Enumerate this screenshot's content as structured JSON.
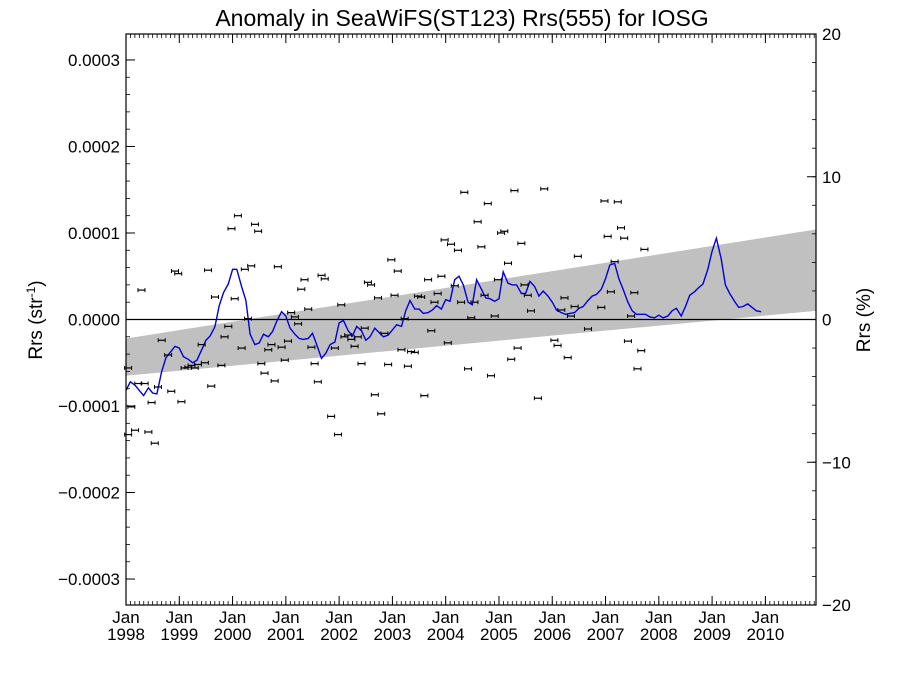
{
  "chart_data": {
    "type": "scatter",
    "title": "Anomaly in SeaWiFS(ST123) Rrs(555) for IOSG",
    "ylabel_left": {
      "text": "Rrs (str",
      "sup": "-1",
      "tail": ")"
    },
    "ylabel_right": "Rrs (%)",
    "xlim": [
      1998.0,
      2010.95
    ],
    "ylim": [
      -0.00033,
      0.00033
    ],
    "ylim_right": [
      -20,
      20
    ],
    "grid": false,
    "x_ticks": [
      {
        "x": 1998,
        "line1": "Jan",
        "line2": "1998"
      },
      {
        "x": 1999,
        "line1": "Jan",
        "line2": "1999"
      },
      {
        "x": 2000,
        "line1": "Jan",
        "line2": "2000"
      },
      {
        "x": 2001,
        "line1": "Jan",
        "line2": "2001"
      },
      {
        "x": 2002,
        "line1": "Jan",
        "line2": "2002"
      },
      {
        "x": 2003,
        "line1": "Jan",
        "line2": "2003"
      },
      {
        "x": 2004,
        "line1": "Jan",
        "line2": "2004"
      },
      {
        "x": 2005,
        "line1": "Jan",
        "line2": "2005"
      },
      {
        "x": 2006,
        "line1": "Jan",
        "line2": "2006"
      },
      {
        "x": 2007,
        "line1": "Jan",
        "line2": "2007"
      },
      {
        "x": 2008,
        "line1": "Jan",
        "line2": "2008"
      },
      {
        "x": 2009,
        "line1": "Jan",
        "line2": "2009"
      },
      {
        "x": 2010,
        "line1": "Jan",
        "line2": "2010"
      }
    ],
    "y_ticks_left": [
      {
        "value": 0.0003,
        "label": "0.0003"
      },
      {
        "value": 0.0002,
        "label": "0.0002"
      },
      {
        "value": 0.0001,
        "label": "0.0001"
      },
      {
        "value": 0.0,
        "label": "0.0000"
      },
      {
        "value": -0.0001,
        "label": "−0.0001"
      },
      {
        "value": -0.0002,
        "label": "−0.0002"
      },
      {
        "value": -0.0003,
        "label": "−0.0003"
      }
    ],
    "y_ticks_right": [
      {
        "value": 20,
        "label": "20"
      },
      {
        "value": 10,
        "label": "10"
      },
      {
        "value": 0,
        "label": "0"
      },
      {
        "value": -10,
        "label": "−10"
      },
      {
        "value": -20,
        "label": "−20"
      }
    ],
    "colors": {
      "smoothed_line": "#0000dd",
      "trend_band": "#c0c0c0",
      "points": "#000000",
      "zero_line": "#000000"
    },
    "trend_band": {
      "x": [
        1998.0,
        2010.95
      ],
      "upper": [
        -2.2e-05,
        0.000104
      ],
      "lower": [
        -6.5e-05,
        1e-05
      ]
    },
    "zero_line": 0.0,
    "points": [
      [
        1998.04,
        -5.6e-05
      ],
      [
        1998.04,
        -0.000133
      ],
      [
        1998.1,
        -0.000101
      ],
      [
        1998.17,
        -0.000128
      ],
      [
        1998.23,
        -7.4e-05
      ],
      [
        1998.29,
        3.4e-05
      ],
      [
        1998.35,
        -7.4e-05
      ],
      [
        1998.42,
        -0.00013
      ],
      [
        1998.48,
        -9.6e-05
      ],
      [
        1998.54,
        -0.000143
      ],
      [
        1998.6,
        -7.8e-05
      ],
      [
        1998.67,
        -2.4e-05
      ],
      [
        1998.79,
        -4.1e-05
      ],
      [
        1998.85,
        -8.3e-05
      ],
      [
        1998.92,
        5.6e-05
      ],
      [
        1998.98,
        5.3e-05
      ],
      [
        1999.04,
        -9.5e-05
      ],
      [
        1999.1,
        -5.6e-05
      ],
      [
        1999.17,
        -5.5e-05
      ],
      [
        1999.23,
        -5.3e-05
      ],
      [
        1999.29,
        -5.6e-05
      ],
      [
        1999.35,
        -5.2e-05
      ],
      [
        1999.42,
        -2.9e-05
      ],
      [
        1999.48,
        -5e-05
      ],
      [
        1999.54,
        5.7e-05
      ],
      [
        1999.6,
        -7.7e-05
      ],
      [
        1999.67,
        2.6e-05
      ],
      [
        1999.79,
        -5.3e-05
      ],
      [
        1999.85,
        -2e-05
      ],
      [
        1999.92,
        -8e-06
      ],
      [
        1999.98,
        0.000105
      ],
      [
        2000.04,
        2.4e-05
      ],
      [
        2000.1,
        0.00012
      ],
      [
        2000.17,
        -3.3e-05
      ],
      [
        2000.23,
        5.8e-05
      ],
      [
        2000.29,
        1e-06
      ],
      [
        2000.35,
        6.2e-05
      ],
      [
        2000.42,
        0.00011
      ],
      [
        2000.48,
        0.000102
      ],
      [
        2000.54,
        -5.1e-05
      ],
      [
        2000.6,
        -6.2e-05
      ],
      [
        2000.67,
        -3.5e-05
      ],
      [
        2000.73,
        -2.9e-05
      ],
      [
        2000.79,
        -7.1e-05
      ],
      [
        2000.85,
        6.1e-05
      ],
      [
        2000.92,
        -3.2e-05
      ],
      [
        2000.98,
        -4.7e-05
      ],
      [
        2001.04,
        -2.5e-05
      ],
      [
        2001.1,
        8e-06
      ],
      [
        2001.17,
        3e-06
      ],
      [
        2001.23,
        -5e-06
      ],
      [
        2001.29,
        3.5e-05
      ],
      [
        2001.35,
        4.6e-05
      ],
      [
        2001.42,
        1.2e-05
      ],
      [
        2001.48,
        -3.2e-05
      ],
      [
        2001.54,
        -5.1e-05
      ],
      [
        2001.6,
        -7.2e-05
      ],
      [
        2001.67,
        5.1e-05
      ],
      [
        2001.73,
        4.7e-05
      ],
      [
        2001.85,
        -0.000112
      ],
      [
        2001.92,
        -3.3e-05
      ],
      [
        2001.98,
        -0.000133
      ],
      [
        2002.04,
        1.7e-05
      ],
      [
        2002.1,
        -2e-05
      ],
      [
        2002.17,
        -1.8e-05
      ],
      [
        2002.23,
        -2.3e-05
      ],
      [
        2002.29,
        -3.1e-05
      ],
      [
        2002.35,
        -2e-05
      ],
      [
        2002.42,
        -5.1e-05
      ],
      [
        2002.48,
        -1e-05
      ],
      [
        2002.54,
        4.3e-05
      ],
      [
        2002.6,
        4e-05
      ],
      [
        2002.67,
        -8.7e-05
      ],
      [
        2002.73,
        2.5e-05
      ],
      [
        2002.79,
        -0.000109
      ],
      [
        2002.85,
        -1.6e-05
      ],
      [
        2002.92,
        -5.2e-05
      ],
      [
        2002.98,
        6.9e-05
      ],
      [
        2003.04,
        2.8e-05
      ],
      [
        2003.1,
        5.6e-05
      ],
      [
        2003.17,
        -3.5e-05
      ],
      [
        2003.23,
        1e-06
      ],
      [
        2003.29,
        -5.4e-05
      ],
      [
        2003.35,
        -3.7e-05
      ],
      [
        2003.42,
        -3.8e-05
      ],
      [
        2003.48,
        2.7e-05
      ],
      [
        2003.54,
        2.6e-05
      ],
      [
        2003.6,
        -8.8e-05
      ],
      [
        2003.67,
        4.6e-05
      ],
      [
        2003.73,
        -1.3e-05
      ],
      [
        2003.79,
        2e-05
      ],
      [
        2003.85,
        3e-05
      ],
      [
        2003.92,
        5e-05
      ],
      [
        2003.98,
        9.2e-05
      ],
      [
        2004.04,
        -2.7e-05
      ],
      [
        2004.1,
        8.7e-05
      ],
      [
        2004.17,
        3.9e-05
      ],
      [
        2004.23,
        8e-05
      ],
      [
        2004.29,
        2e-05
      ],
      [
        2004.35,
        0.000147
      ],
      [
        2004.42,
        -5.7e-05
      ],
      [
        2004.48,
        2e-06
      ],
      [
        2004.54,
        2e-05
      ],
      [
        2004.6,
        0.000113
      ],
      [
        2004.67,
        8.4e-05
      ],
      [
        2004.73,
        2.8e-05
      ],
      [
        2004.79,
        0.000134
      ],
      [
        2004.85,
        -6.5e-05
      ],
      [
        2004.92,
        4e-06
      ],
      [
        2004.98,
        4.6e-05
      ],
      [
        2005.04,
        0.0001
      ],
      [
        2005.1,
        0.000102
      ],
      [
        2005.17,
        6.5e-05
      ],
      [
        2005.23,
        -4.6e-05
      ],
      [
        2005.29,
        0.000149
      ],
      [
        2005.35,
        -3.3e-05
      ],
      [
        2005.42,
        8.8e-05
      ],
      [
        2005.48,
        4e-05
      ],
      [
        2005.54,
        2.8e-05
      ],
      [
        2005.6,
        1e-05
      ],
      [
        2005.73,
        -9.1e-05
      ],
      [
        2005.85,
        0.000151
      ],
      [
        2006.04,
        -2.4e-05
      ],
      [
        2006.1,
        -3e-05
      ],
      [
        2006.17,
        1.1e-05
      ],
      [
        2006.23,
        2.5e-05
      ],
      [
        2006.29,
        -4.4e-05
      ],
      [
        2006.35,
        4e-06
      ],
      [
        2006.42,
        1.5e-05
      ],
      [
        2006.48,
        7.3e-05
      ],
      [
        2006.67,
        -1.1e-05
      ],
      [
        2006.92,
        1.4e-05
      ],
      [
        2006.98,
        0.000137
      ],
      [
        2007.04,
        9.6e-05
      ],
      [
        2007.1,
        3.2e-05
      ],
      [
        2007.17,
        6.7e-05
      ],
      [
        2007.23,
        0.000136
      ],
      [
        2007.29,
        0.000106
      ],
      [
        2007.35,
        9.4e-05
      ],
      [
        2007.42,
        -2.5e-05
      ],
      [
        2007.48,
        4e-06
      ],
      [
        2007.54,
        3.1e-05
      ],
      [
        2007.6,
        -5.7e-05
      ],
      [
        2007.67,
        -3.6e-05
      ],
      [
        2007.73,
        8.1e-05
      ]
    ],
    "smoothed_line": {
      "x": [
        1998.0,
        1998.08,
        1998.17,
        1998.25,
        1998.33,
        1998.42,
        1998.5,
        1998.58,
        1998.67,
        1998.75,
        1998.83,
        1998.92,
        1999.0,
        1999.08,
        1999.17,
        1999.25,
        1999.33,
        1999.42,
        1999.5,
        1999.58,
        1999.67,
        1999.75,
        1999.83,
        1999.92,
        2000.0,
        2000.08,
        2000.17,
        2000.25,
        2000.33,
        2000.42,
        2000.5,
        2000.58,
        2000.67,
        2000.75,
        2000.83,
        2000.92,
        2001.0,
        2001.08,
        2001.17,
        2001.25,
        2001.33,
        2001.42,
        2001.5,
        2001.58,
        2001.67,
        2001.75,
        2001.83,
        2001.92,
        2002.0,
        2002.08,
        2002.17,
        2002.25,
        2002.33,
        2002.42,
        2002.5,
        2002.58,
        2002.67,
        2002.75,
        2002.83,
        2002.92,
        2003.0,
        2003.08,
        2003.17,
        2003.25,
        2003.33,
        2003.42,
        2003.5,
        2003.58,
        2003.67,
        2003.75,
        2003.83,
        2003.92,
        2004.0,
        2004.08,
        2004.17,
        2004.25,
        2004.33,
        2004.42,
        2004.5,
        2004.58,
        2004.67,
        2004.75,
        2004.83,
        2004.92,
        2005.0,
        2005.08,
        2005.17,
        2005.25,
        2005.33,
        2005.42,
        2005.5,
        2005.58,
        2005.67,
        2005.75,
        2005.83,
        2005.92,
        2006.0,
        2006.08,
        2006.17,
        2006.25,
        2006.33,
        2006.42,
        2006.5,
        2006.58,
        2006.67,
        2006.75,
        2006.83,
        2006.92,
        2007.0,
        2007.08,
        2007.17,
        2007.25,
        2007.33,
        2007.42,
        2007.5,
        2007.58,
        2007.67,
        2007.75,
        2007.83,
        2007.92,
        2008.0,
        2008.08,
        2008.17,
        2008.25,
        2008.33,
        2008.42,
        2008.5,
        2008.58,
        2008.67,
        2008.75,
        2008.83,
        2008.92,
        2009.0,
        2009.08,
        2009.17,
        2009.25,
        2009.33,
        2009.42,
        2009.5,
        2009.58,
        2009.67,
        2009.75,
        2009.83,
        2009.92
      ],
      "y": [
        -8.2e-05,
        -7.2e-05,
        -7.6e-05,
        -8.2e-05,
        -8.8e-05,
        -7.9e-05,
        -8.5e-05,
        -8.6e-05,
        -6e-05,
        -4.4e-05,
        -3.8e-05,
        -3.1e-05,
        -3.3e-05,
        -4.3e-05,
        -4.6e-05,
        -5e-05,
        -4.7e-05,
        -3.5e-05,
        -2.4e-05,
        -1.9e-05,
        -8e-06,
        1.6e-05,
        3.1e-05,
        4.1e-05,
        5.8e-05,
        5.8e-05,
        3.8e-05,
        2.2e-05,
        -1.7e-05,
        -2.9e-05,
        -2.7e-05,
        -1.7e-05,
        -2e-05,
        -1.4e-05,
        -2e-06,
        9e-06,
        4e-06,
        -1e-05,
        -1.7e-05,
        -2.2e-05,
        -2.3e-05,
        -2.2e-05,
        -1.6e-05,
        -2.9e-05,
        -4.5e-05,
        -3.9e-05,
        -2.9e-05,
        -2.6e-05,
        -4e-06,
        -1e-06,
        -1.3e-05,
        -1.9e-05,
        -8e-06,
        -1.3e-05,
        -2.4e-05,
        -2e-05,
        -1e-05,
        -1.5e-05,
        -2e-05,
        -1.8e-05,
        -1.2e-05,
        -6e-06,
        -8e-06,
        1e-05,
        2.2e-05,
        1.2e-05,
        1.2e-05,
        7e-06,
        8e-06,
        1.1e-05,
        1.6e-05,
        1.2e-05,
        2.3e-05,
        2.1e-05,
        4.6e-05,
        5e-05,
        4e-05,
        2e-05,
        1.7e-05,
        4.6e-05,
        3.5e-05,
        2.5e-05,
        2.4e-05,
        2.1e-05,
        2.4e-05,
        5.5e-05,
        4.2e-05,
        4e-05,
        4e-05,
        3e-05,
        3e-05,
        4.4e-05,
        3.8e-05,
        2.7e-05,
        3.3e-05,
        2.7e-05,
        2e-05,
        1.1e-05,
        8e-06,
        6e-06,
        7e-06,
        8e-06,
        1.3e-05,
        1.5e-05,
        2.2e-05,
        2.7e-05,
        2.9e-05,
        3.5e-05,
        4.7e-05,
        6.3e-05,
        6.5e-05,
        4.7e-05,
        3.5e-05,
        2e-05,
        1e-05,
        6e-06,
        6e-06,
        6e-06,
        3e-06,
        2e-06,
        5e-06,
        2e-06,
        4e-06,
        1e-05,
        1.3e-05,
        4e-06,
        1.5e-05,
        2.8e-05,
        3.2e-05,
        3.7e-05,
        4.1e-05,
        5.8e-05,
        7.9e-05,
        9.4e-05,
        7e-05,
        4e-05,
        3e-05,
        2.1e-05,
        1.4e-05,
        1.5e-05,
        1.8e-05,
        1.4e-05,
        1e-05,
        9e-06
      ]
    }
  }
}
